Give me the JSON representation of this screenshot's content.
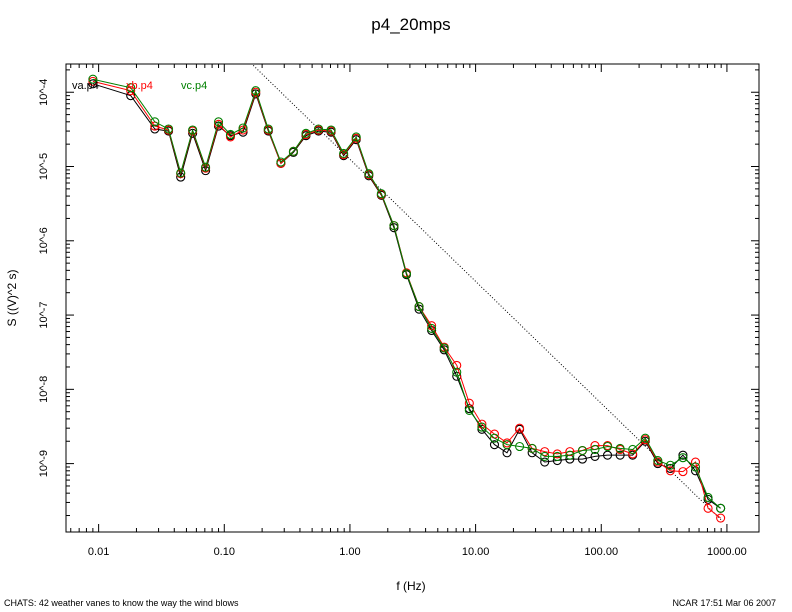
{
  "chart_data": {
    "type": "line",
    "title": "p4_20mps",
    "xlabel": "f (Hz)",
    "ylabel": "S ((V)^2 s)",
    "xscale": "log",
    "yscale": "log",
    "xlim": [
      0.0055,
      1800
    ],
    "ylim": [
      1.2e-10,
      0.00024
    ],
    "grid": false,
    "legend_position": "top-left",
    "x_ticks": [
      {
        "value": 0.01,
        "label": "0.01"
      },
      {
        "value": 0.1,
        "label": "0.10"
      },
      {
        "value": 1,
        "label": "1.00"
      },
      {
        "value": 10,
        "label": "10.00"
      },
      {
        "value": 100,
        "label": "100.00"
      },
      {
        "value": 1000,
        "label": "1000.00"
      }
    ],
    "y_ticks": [
      {
        "value": 1e-09,
        "label": "10^-9"
      },
      {
        "value": 1e-08,
        "label": "10^-8"
      },
      {
        "value": 1e-07,
        "label": "10^-7"
      },
      {
        "value": 1e-06,
        "label": "10^-6"
      },
      {
        "value": 1e-05,
        "label": "10^-5"
      },
      {
        "value": 0.0001,
        "label": "10^-4"
      }
    ],
    "reference_line": {
      "style": "dotted",
      "color": "#000000",
      "points": [
        [
          0.17,
          0.00023
        ],
        [
          950,
          1.6e-10
        ]
      ]
    },
    "x": [
      0.009,
      0.018,
      0.028,
      0.036,
      0.045,
      0.056,
      0.071,
      0.09,
      0.112,
      0.141,
      0.178,
      0.224,
      0.282,
      0.355,
      0.447,
      0.562,
      0.708,
      0.891,
      1.122,
      1.413,
      1.778,
      2.239,
      2.818,
      3.548,
      4.467,
      5.623,
      7.079,
      8.913,
      11.22,
      14.13,
      17.78,
      22.39,
      28.18,
      35.48,
      44.67,
      56.23,
      70.79,
      89.13,
      112.2,
      141.3,
      177.8,
      223.9,
      281.8,
      354.8,
      446.7,
      562.3,
      707.9,
      891.3
    ],
    "series": [
      {
        "name": "va.p4",
        "color": "#000000",
        "values": [
          0.00013,
          9e-05,
          3.2e-05,
          3e-05,
          7.2e-06,
          2.8e-05,
          8.8e-06,
          3.5e-05,
          2.6e-05,
          2.9e-05,
          9.5e-05,
          3e-05,
          1.1e-05,
          1.55e-05,
          2.6e-05,
          3e-05,
          2.9e-05,
          1.4e-05,
          2.3e-05,
          7.5e-06,
          4.1e-06,
          1.5e-06,
          3.5e-07,
          1.2e-07,
          6.2e-08,
          3.4e-08,
          1.5e-08,
          5.5e-09,
          2.9e-09,
          1.8e-09,
          1.4e-09,
          2.9e-09,
          1.4e-09,
          1.05e-09,
          1.1e-09,
          1.15e-09,
          1.15e-09,
          1.25e-09,
          1.3e-09,
          1.3e-09,
          1.3e-09,
          2e-09,
          1e-09,
          8.6e-10,
          1.3e-09,
          8e-10,
          3.3e-10,
          2.5e-10
        ]
      },
      {
        "name": "xb.p4",
        "color": "#ff0000",
        "values": [
          0.00014,
          0.000105,
          3.5e-05,
          3.1e-05,
          8e-06,
          3e-05,
          9.5e-06,
          3.7e-05,
          2.5e-05,
          3.1e-05,
          0.0001,
          3.1e-05,
          1.1e-05,
          1.6e-05,
          2.7e-05,
          3.1e-05,
          3e-05,
          1.45e-05,
          2.4e-05,
          7.8e-06,
          4.2e-06,
          1.6e-06,
          3.7e-07,
          1.3e-07,
          7.2e-08,
          3.7e-08,
          2.1e-08,
          6.5e-09,
          3.4e-09,
          2.5e-09,
          1.9e-09,
          3e-09,
          1.6e-09,
          1.45e-09,
          1.35e-09,
          1.45e-09,
          1.5e-09,
          1.75e-09,
          1.75e-09,
          1.55e-09,
          1.35e-09,
          2.1e-09,
          1.05e-09,
          8e-10,
          7.8e-10,
          1.05e-09,
          2.5e-10,
          1.85e-10
        ]
      },
      {
        "name": "vc.p4",
        "color": "#008000",
        "values": [
          0.00015,
          0.000115,
          4e-05,
          3.2e-05,
          8.2e-06,
          3.1e-05,
          9.8e-06,
          4e-05,
          2.7e-05,
          3.3e-05,
          0.000105,
          3.2e-05,
          1.15e-05,
          1.6e-05,
          2.8e-05,
          3.2e-05,
          3.1e-05,
          1.5e-05,
          2.5e-05,
          8e-06,
          4.3e-06,
          1.6e-06,
          3.6e-07,
          1.3e-07,
          6.6e-08,
          3.6e-08,
          1.7e-08,
          5.2e-09,
          3.1e-09,
          2.2e-09,
          1.8e-09,
          1.7e-09,
          1.6e-09,
          1.25e-09,
          1.25e-09,
          1.3e-09,
          1.5e-09,
          1.55e-09,
          1.7e-09,
          1.6e-09,
          1.55e-09,
          2.2e-09,
          1.1e-09,
          9.5e-10,
          1.2e-09,
          9e-10,
          3.5e-10,
          2.5e-10
        ]
      }
    ]
  },
  "footer": {
    "left": "CHATS: 42 weather vanes to know the way the wind blows",
    "right": "NCAR 17:51 Mar 06 2007"
  }
}
